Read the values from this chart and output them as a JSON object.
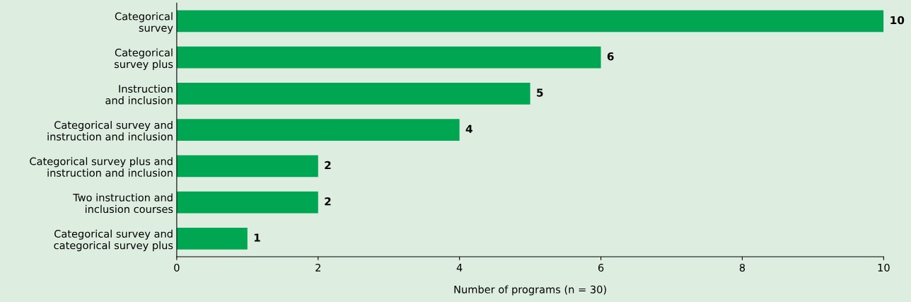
{
  "chart_data": {
    "type": "bar",
    "orientation": "horizontal",
    "xlabel": "Number of programs (n = 30)",
    "categories": [
      "Categorical\nsurvey",
      "Categorical\nsurvey plus",
      "Instruction\nand inclusion",
      "Categorical survey and\ninstruction and inclusion",
      "Categorical survey plus and\ninstruction and inclusion",
      "Two instruction and\ninclusion courses",
      "Categorical survey and\ncategorical survey plus"
    ],
    "values": [
      10,
      6,
      5,
      4,
      2,
      2,
      1
    ],
    "color": "#00a651",
    "data_labels": true,
    "xlim": [
      0,
      10
    ],
    "xticks": [
      0,
      2,
      4,
      6,
      8,
      10
    ],
    "grid": false,
    "legend": false
  }
}
